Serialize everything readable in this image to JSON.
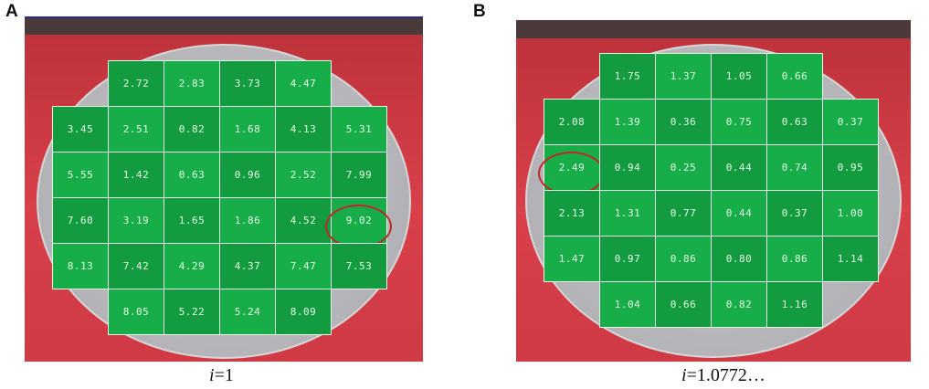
{
  "panels": [
    {
      "letter": "A",
      "caption_var": "i",
      "caption_rest": "=1",
      "rows": [
        [
          "",
          "2.72",
          "2.83",
          "3.73",
          "4.47",
          ""
        ],
        [
          "3.45",
          "2.51",
          "0.82",
          "1.68",
          "4.13",
          "5.31"
        ],
        [
          "5.55",
          "1.42",
          "0.63",
          "0.96",
          "2.52",
          "7.99"
        ],
        [
          "7.60",
          "3.19",
          "1.65",
          "1.86",
          "4.52",
          "9.02"
        ],
        [
          "8.13",
          "7.42",
          "4.29",
          "4.37",
          "7.47",
          "7.53"
        ],
        [
          "",
          "8.05",
          "5.22",
          "5.24",
          "8.09",
          ""
        ]
      ],
      "highlighted_value": "9.02"
    },
    {
      "letter": "B",
      "caption_var": "i",
      "caption_rest": "=1.0772…",
      "rows": [
        [
          "",
          "1.75",
          "1.37",
          "1.05",
          "0.66",
          ""
        ],
        [
          "2.08",
          "1.39",
          "0.36",
          "0.75",
          "0.63",
          "0.37"
        ],
        [
          "2.49",
          "0.94",
          "0.25",
          "0.44",
          "0.74",
          "0.95"
        ],
        [
          "2.13",
          "1.31",
          "0.77",
          "0.44",
          "0.37",
          "1.00"
        ],
        [
          "1.47",
          "0.97",
          "0.86",
          "0.80",
          "0.86",
          "1.14"
        ],
        [
          "",
          "1.04",
          "0.66",
          "0.82",
          "1.16",
          ""
        ]
      ],
      "highlighted_value": "2.49"
    }
  ],
  "colors": {
    "cell_green": "#17ad48",
    "background_red": "#d8404a",
    "wafer_gray": "#b4b4b8",
    "marker_red": "#c0262a"
  }
}
